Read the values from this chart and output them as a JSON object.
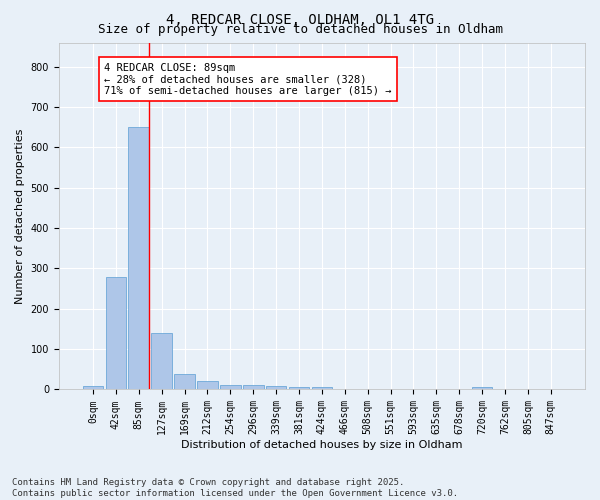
{
  "title": "4, REDCAR CLOSE, OLDHAM, OL1 4TG",
  "subtitle": "Size of property relative to detached houses in Oldham",
  "xlabel": "Distribution of detached houses by size in Oldham",
  "ylabel": "Number of detached properties",
  "bar_color": "#aec6e8",
  "bar_edge_color": "#5a9fd4",
  "background_color": "#e8f0f8",
  "grid_color": "#ffffff",
  "categories": [
    "0sqm",
    "42sqm",
    "85sqm",
    "127sqm",
    "169sqm",
    "212sqm",
    "254sqm",
    "296sqm",
    "339sqm",
    "381sqm",
    "424sqm",
    "466sqm",
    "508sqm",
    "551sqm",
    "593sqm",
    "635sqm",
    "678sqm",
    "720sqm",
    "762sqm",
    "805sqm",
    "847sqm"
  ],
  "values": [
    8,
    278,
    651,
    141,
    38,
    20,
    12,
    10,
    9,
    7,
    5,
    0,
    0,
    0,
    0,
    0,
    0,
    5,
    0,
    0,
    0
  ],
  "ylim": [
    0,
    860
  ],
  "yticks": [
    0,
    100,
    200,
    300,
    400,
    500,
    600,
    700,
    800
  ],
  "property_bin_index": 2,
  "annotation_text": "4 REDCAR CLOSE: 89sqm\n← 28% of detached houses are smaller (328)\n71% of semi-detached houses are larger (815) →",
  "annotation_box_color": "white",
  "annotation_box_edge_color": "red",
  "vline_color": "red",
  "footer_text": "Contains HM Land Registry data © Crown copyright and database right 2025.\nContains public sector information licensed under the Open Government Licence v3.0.",
  "title_fontsize": 10,
  "subtitle_fontsize": 9,
  "axis_label_fontsize": 8,
  "tick_fontsize": 7,
  "annotation_fontsize": 7.5,
  "footer_fontsize": 6.5
}
